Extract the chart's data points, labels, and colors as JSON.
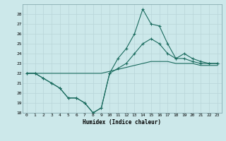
{
  "xlabel": "Humidex (Indice chaleur)",
  "ylabel": "",
  "xlim": [
    -0.5,
    23.5
  ],
  "ylim": [
    18,
    29
  ],
  "yticks": [
    18,
    19,
    20,
    21,
    22,
    23,
    24,
    25,
    26,
    27,
    28
  ],
  "xticks": [
    0,
    1,
    2,
    3,
    4,
    5,
    6,
    7,
    8,
    9,
    10,
    11,
    12,
    13,
    14,
    15,
    16,
    17,
    18,
    19,
    20,
    21,
    22,
    23
  ],
  "bg_color": "#cce8ea",
  "line_color": "#1a6b5e",
  "grid_color": "#b8d5d8",
  "line1_x": [
    0,
    1,
    2,
    3,
    4,
    5,
    6,
    7,
    8,
    9,
    10,
    11,
    12,
    13,
    14,
    15,
    16,
    17,
    18,
    19,
    20,
    21,
    22,
    23
  ],
  "line1_y": [
    22,
    22,
    21.5,
    21,
    20.5,
    19.5,
    19.5,
    19,
    18,
    18.5,
    22,
    23.5,
    24.5,
    26,
    28.5,
    27,
    26.8,
    25,
    23.5,
    24,
    23.5,
    23.2,
    23,
    23
  ],
  "line2_x": [
    0,
    1,
    2,
    3,
    4,
    5,
    6,
    7,
    8,
    9,
    10,
    11,
    12,
    13,
    14,
    15,
    16,
    17,
    18,
    19,
    20,
    21,
    22,
    23
  ],
  "line2_y": [
    22,
    22,
    21.5,
    21,
    20.5,
    19.5,
    19.5,
    19,
    18,
    18.5,
    22,
    22.5,
    23,
    24,
    25,
    25.5,
    25,
    24,
    23.5,
    23.5,
    23.2,
    23,
    23,
    23
  ],
  "line3_x": [
    0,
    1,
    2,
    3,
    4,
    5,
    6,
    7,
    8,
    9,
    10,
    11,
    12,
    13,
    14,
    15,
    16,
    17,
    18,
    19,
    20,
    21,
    22,
    23
  ],
  "line3_y": [
    22,
    22,
    22,
    22,
    22,
    22,
    22,
    22,
    22,
    22,
    22.2,
    22.4,
    22.6,
    22.8,
    23,
    23.2,
    23.2,
    23.2,
    23,
    23,
    23,
    22.8,
    22.8,
    22.8
  ]
}
